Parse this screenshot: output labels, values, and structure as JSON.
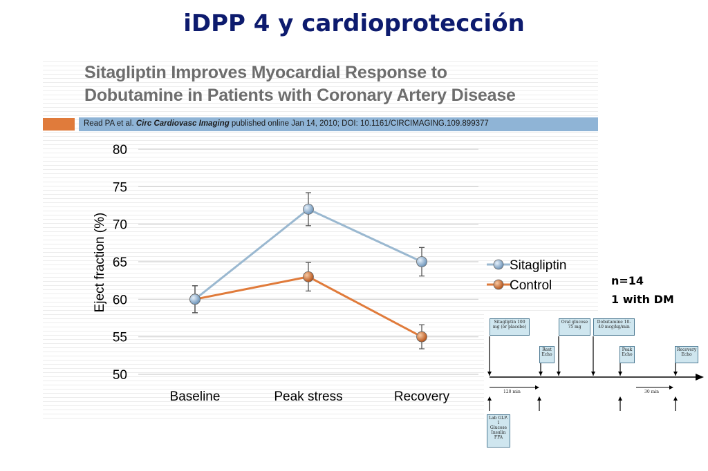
{
  "slide": {
    "title": "iDPP 4 y cardioprotección",
    "n_label": "n=14",
    "dm_label": "1 with DM"
  },
  "panel": {
    "title_line1": "Sitagliptin Improves Myocardial Response to",
    "title_line2": "Dobutamine in Patients with Coronary Artery Disease",
    "citation_prefix": "Read PA et al. ",
    "citation_journal": "Circ Cardiovasc Imaging",
    "citation_suffix": " published online Jan 14, 2010; DOI: 10.1161/CIRCIMAGING.109.899377"
  },
  "colors": {
    "sitagliptin": "#9ab8d0",
    "control": "#e07b3b",
    "title_blue": "#0d1b6e",
    "citation_bar": "#8fb4d6"
  },
  "chart_data": {
    "type": "line",
    "categories": [
      "Baseline",
      "Peak stress",
      "Recovery"
    ],
    "ylabel": "Eject fraction  (%)",
    "xlabel": "",
    "ylim": [
      50,
      80
    ],
    "yticks": [
      50,
      55,
      60,
      65,
      70,
      75,
      80
    ],
    "grid": true,
    "legend": "right",
    "series": [
      {
        "name": "Sitagliptin",
        "values": [
          60,
          72,
          65
        ],
        "errors": [
          1.8,
          2.2,
          1.9
        ],
        "color": "#9ab8d0",
        "marker_color": "#8db1d4"
      },
      {
        "name": "Control",
        "values": [
          60,
          63,
          55
        ],
        "errors": [
          1.8,
          1.9,
          1.6
        ],
        "color": "#e07b3b",
        "marker_color": "#d9772f"
      }
    ]
  },
  "protocol": {
    "box_sitagliptin": "Sitagliptin 100 mg (or placebo)",
    "box_rest": "Rest Echo",
    "box_glucose": "Oral glucose 75 mg",
    "box_dobutamine": "Dobutamine 10-40 mcg/kg/min",
    "box_peak": "Peak Echo",
    "box_recovery": "Recovery Echo",
    "label_120": "120 min",
    "label_30": "30 min",
    "box_lab": "Lab GLP-1 Glucose Insulin FFA"
  }
}
